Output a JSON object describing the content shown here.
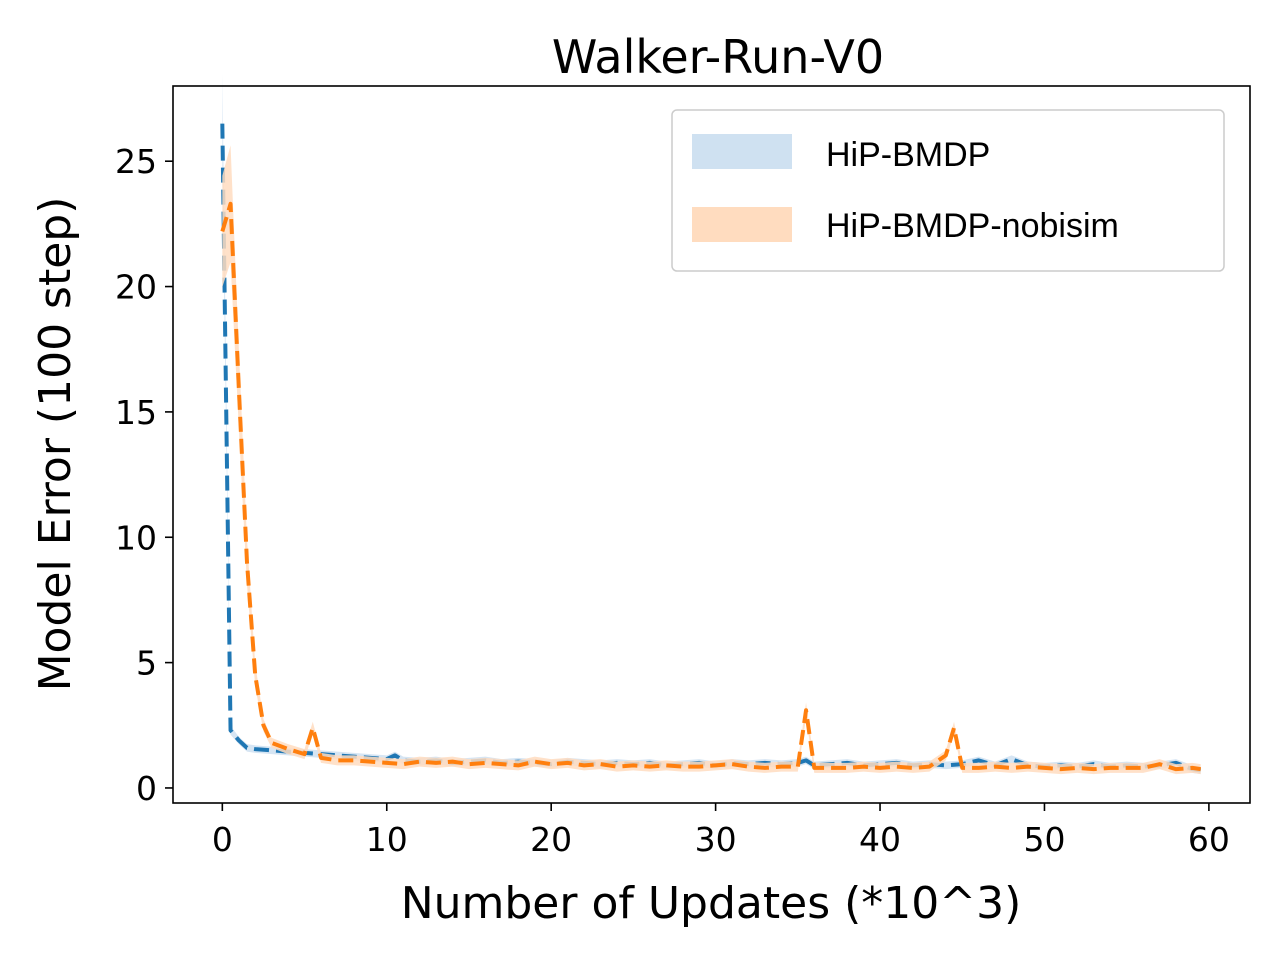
{
  "chart_data": {
    "type": "line",
    "title": "Walker-Run-V0",
    "xlabel": "Number of Updates (*10^3)",
    "ylabel": "Model Error (100 step)",
    "xlim": [
      -3,
      62.5
    ],
    "ylim": [
      -0.6,
      28
    ],
    "xticks": [
      0,
      10,
      20,
      30,
      40,
      50,
      60
    ],
    "yticks": [
      0,
      5,
      10,
      15,
      20,
      25
    ],
    "grid": false,
    "legend_position": "upper-right",
    "series": [
      {
        "name": "HiP-BMDP",
        "color": "#1f77b4",
        "fill_color": "#cfe1f1",
        "x": [
          0,
          0.5,
          1,
          1.5,
          2,
          3,
          4,
          5,
          6,
          7,
          8,
          9,
          10,
          10.5,
          11,
          12,
          13,
          14,
          15,
          16,
          17,
          18,
          19,
          20,
          21,
          22,
          23,
          24,
          25,
          26,
          27,
          28,
          29,
          30,
          31,
          32,
          33,
          34,
          35,
          35.5,
          36,
          37,
          38,
          39,
          40,
          41,
          42,
          43,
          44,
          45,
          46,
          47,
          48,
          49,
          50,
          51,
          52,
          53,
          54,
          55,
          56,
          57,
          58,
          59,
          59.5
        ],
        "y": [
          26.5,
          2.3,
          1.9,
          1.6,
          1.55,
          1.5,
          1.45,
          1.4,
          1.35,
          1.3,
          1.25,
          1.2,
          1.15,
          1.3,
          1.1,
          1.05,
          1.1,
          1.0,
          1.05,
          1.1,
          1.0,
          1.05,
          1.0,
          0.95,
          1.05,
          1.0,
          0.95,
          1.0,
          0.95,
          1.0,
          0.9,
          0.95,
          1.0,
          0.9,
          1.0,
          0.95,
          1.0,
          0.95,
          1.0,
          1.1,
          0.9,
          0.95,
          1.0,
          0.9,
          0.95,
          1.0,
          0.9,
          0.95,
          0.9,
          0.95,
          1.1,
          0.9,
          1.15,
          0.9,
          0.85,
          0.9,
          0.85,
          0.95,
          0.85,
          0.9,
          0.85,
          0.9,
          1.0,
          0.75,
          0.7
        ],
        "band": 0.15
      },
      {
        "name": "HiP-BMDP-nobisim",
        "color": "#ff7f0e",
        "fill_color": "#ffdcbf",
        "x": [
          0,
          0.5,
          1,
          1.5,
          2,
          2.5,
          3,
          4,
          5,
          5.5,
          6,
          7,
          8,
          9,
          10,
          11,
          12,
          13,
          14,
          15,
          16,
          17,
          18,
          19,
          20,
          21,
          22,
          23,
          24,
          25,
          26,
          27,
          28,
          29,
          30,
          31,
          32,
          33,
          34,
          35,
          35.5,
          36,
          37,
          38,
          39,
          40,
          41,
          42,
          43,
          44,
          44.5,
          45,
          46,
          47,
          48,
          49,
          50,
          51,
          52,
          53,
          54,
          55,
          56,
          57,
          58,
          59,
          59.5
        ],
        "y": [
          22.2,
          23.3,
          16,
          9,
          4.5,
          2.5,
          1.8,
          1.55,
          1.35,
          2.4,
          1.2,
          1.1,
          1.1,
          1.05,
          1.0,
          0.95,
          1.05,
          1.0,
          1.05,
          0.95,
          1.0,
          0.95,
          0.9,
          1.05,
          0.95,
          1.0,
          0.9,
          0.95,
          0.85,
          0.9,
          0.85,
          0.9,
          0.85,
          0.85,
          0.9,
          0.95,
          0.85,
          0.8,
          0.85,
          0.85,
          3.1,
          0.8,
          0.8,
          0.8,
          0.85,
          0.8,
          0.85,
          0.8,
          0.85,
          1.3,
          2.4,
          0.8,
          0.8,
          0.85,
          0.8,
          0.85,
          0.8,
          0.75,
          0.8,
          0.75,
          0.8,
          0.8,
          0.8,
          0.95,
          0.75,
          0.8,
          0.75
        ],
        "band": 0.2
      }
    ]
  }
}
